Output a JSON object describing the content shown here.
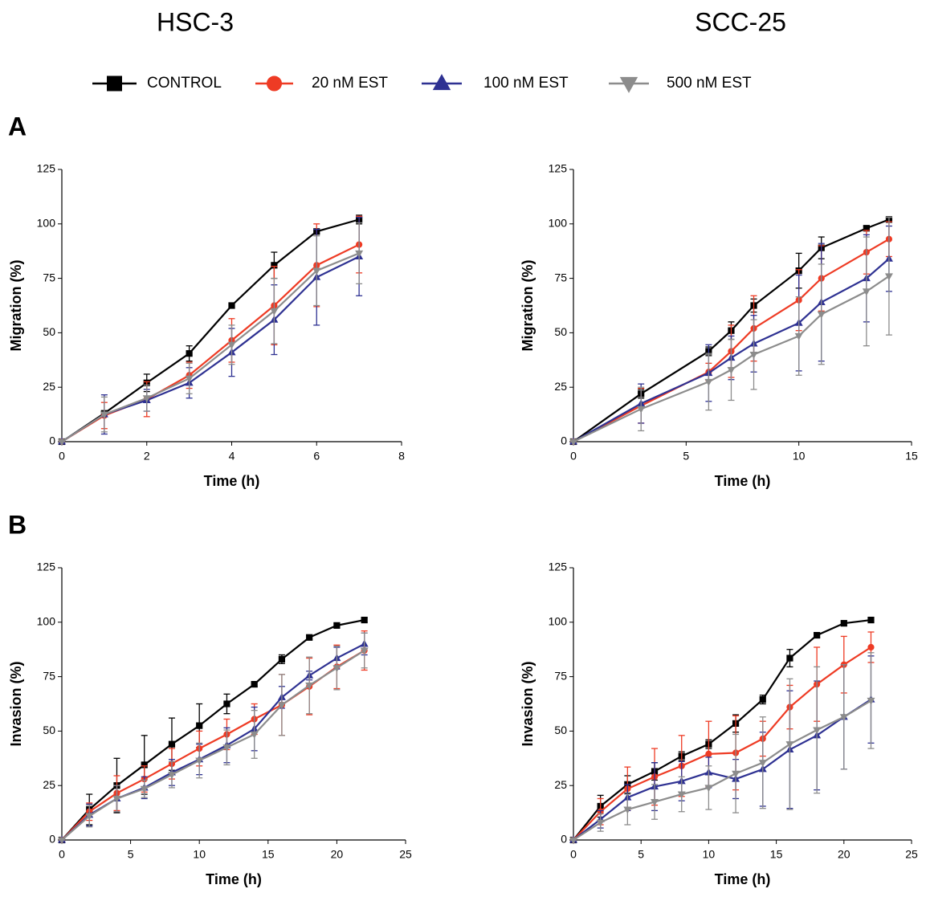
{
  "columns": [
    "HSC-3",
    "SCC-25"
  ],
  "rows": [
    "A",
    "B"
  ],
  "series": [
    {
      "name": "CONTROL",
      "color": "#000000",
      "marker": "square"
    },
    {
      "name": "20 nM EST",
      "color": "#ee3b24",
      "marker": "circle"
    },
    {
      "name": "100 nM EST",
      "color": "#2e3192",
      "marker": "triangle-up"
    },
    {
      "name": "500 nM EST",
      "color": "#8c8c8c",
      "marker": "triangle-down"
    }
  ],
  "chart_data": [
    {
      "type": "line",
      "x_label": "Time (h)",
      "y_label": "Migration (%)",
      "x": [
        0,
        1,
        2,
        3,
        4,
        5,
        6,
        7
      ],
      "xlim": [
        0,
        8
      ],
      "xticks": [
        0,
        2,
        4,
        6,
        8
      ],
      "ylim": [
        0,
        125
      ],
      "yticks": [
        0,
        25,
        50,
        75,
        100,
        125
      ],
      "series": [
        {
          "values": [
            0,
            13,
            27,
            40.5,
            62.5,
            81,
            96.5,
            102
          ],
          "errors": [
            0,
            1,
            4,
            3.5,
            1,
            6,
            1,
            2
          ]
        },
        {
          "values": [
            0,
            12,
            19.5,
            30.5,
            46.5,
            62.5,
            81,
            90.5
          ],
          "errors": [
            0,
            6,
            8,
            6,
            10,
            18,
            19,
            13
          ]
        },
        {
          "values": [
            0,
            12.5,
            19,
            27,
            41,
            56,
            75.5,
            85
          ],
          "errors": [
            0,
            9,
            5,
            7,
            11,
            16,
            22,
            18
          ]
        },
        {
          "values": [
            0,
            12.5,
            20,
            29,
            44.5,
            60,
            78.5,
            86.5
          ],
          "errors": [
            0,
            8,
            6,
            7,
            9,
            15,
            16,
            14
          ]
        }
      ]
    },
    {
      "type": "line",
      "x_label": "Time (h)",
      "y_label": "Migration (%)",
      "x": [
        0,
        3,
        6,
        7,
        8,
        10,
        11,
        13,
        14
      ],
      "xlim": [
        0,
        15
      ],
      "xticks": [
        0,
        5,
        10,
        15
      ],
      "ylim": [
        0,
        125
      ],
      "yticks": [
        0,
        25,
        50,
        75,
        100,
        125
      ],
      "series": [
        {
          "values": [
            0,
            22,
            41.5,
            51,
            62.5,
            78.5,
            89,
            98,
            102
          ],
          "errors": [
            0,
            2,
            2,
            4,
            3,
            8,
            5,
            1,
            1
          ]
        },
        {
          "values": [
            0,
            16.5,
            32,
            41.5,
            52,
            65,
            75,
            87,
            93
          ],
          "errors": [
            0,
            8,
            4,
            12,
            15,
            14,
            15,
            10,
            8
          ]
        },
        {
          "values": [
            0,
            17.5,
            31.5,
            38.5,
            45,
            54.5,
            64,
            75,
            84
          ],
          "errors": [
            0,
            9,
            13,
            10,
            13,
            22,
            27,
            20,
            15
          ]
        },
        {
          "values": [
            0,
            15,
            27.5,
            33,
            40,
            48.5,
            58.5,
            69,
            76
          ],
          "errors": [
            0,
            10,
            13,
            14,
            16,
            18,
            23,
            25,
            27
          ]
        }
      ]
    },
    {
      "type": "line",
      "x_label": "Time (h)",
      "y_label": "Invasion (%)",
      "x": [
        0,
        2,
        4,
        6,
        8,
        10,
        12,
        14,
        16,
        18,
        20,
        22
      ],
      "xlim": [
        0,
        25
      ],
      "xticks": [
        0,
        5,
        10,
        15,
        20,
        25
      ],
      "ylim": [
        0,
        125
      ],
      "yticks": [
        0,
        25,
        50,
        75,
        100,
        125
      ],
      "series": [
        {
          "values": [
            0,
            14,
            25,
            34.5,
            44,
            52.5,
            62.5,
            71.5,
            83,
            93,
            98.5,
            101
          ],
          "errors": [
            0,
            7,
            12.5,
            13.5,
            12,
            10,
            4.5,
            1,
            2,
            1,
            1,
            1
          ]
        },
        {
          "values": [
            0,
            13,
            21.5,
            28,
            35,
            42,
            48.5,
            55.5,
            62,
            70.5,
            79.5,
            87
          ],
          "errors": [
            0,
            4,
            8,
            6,
            7,
            8,
            7,
            7,
            14,
            13,
            10,
            9
          ]
        },
        {
          "values": [
            0,
            11.5,
            19,
            24,
            31,
            37,
            43.5,
            51,
            65.5,
            75.5,
            83.5,
            90
          ],
          "errors": [
            0,
            5,
            6,
            5,
            6,
            7,
            8,
            10,
            5,
            2,
            5,
            5
          ]
        },
        {
          "values": [
            0,
            11,
            19,
            23.5,
            30,
            36.5,
            42.5,
            48.5,
            62,
            71,
            79,
            87
          ],
          "errors": [
            0,
            5,
            6,
            4,
            6,
            8,
            8,
            11,
            14,
            13,
            10,
            8
          ]
        }
      ]
    },
    {
      "type": "line",
      "x_label": "Time (h)",
      "y_label": "Invasion (%)",
      "x": [
        0,
        2,
        4,
        6,
        8,
        10,
        12,
        14,
        16,
        18,
        20,
        22
      ],
      "xlim": [
        0,
        25
      ],
      "xticks": [
        0,
        5,
        10,
        15,
        20,
        25
      ],
      "ylim": [
        0,
        125
      ],
      "yticks": [
        0,
        25,
        50,
        75,
        100,
        125
      ],
      "series": [
        {
          "values": [
            0,
            15.5,
            25.5,
            31.5,
            38.5,
            44,
            53.5,
            64.5,
            83.5,
            94,
            99.5,
            101
          ],
          "errors": [
            0,
            5,
            4,
            4,
            2,
            2,
            4,
            2,
            4,
            1,
            1,
            1
          ]
        },
        {
          "values": [
            0,
            13,
            23.5,
            29,
            34,
            39.5,
            40,
            46.5,
            61,
            71.5,
            80.5,
            88.5
          ],
          "errors": [
            0,
            6,
            10,
            13,
            14,
            15,
            17,
            8,
            10,
            17,
            13,
            7
          ]
        },
        {
          "values": [
            0,
            9.5,
            19.5,
            24.5,
            27,
            31,
            28,
            32.5,
            41.5,
            48,
            56.5,
            64.5
          ],
          "errors": [
            0,
            4,
            6,
            11,
            9,
            7,
            9,
            17,
            27,
            25,
            24,
            20
          ]
        },
        {
          "values": [
            0,
            8,
            14,
            17.5,
            21,
            24,
            30.5,
            35.5,
            44,
            50.5,
            56.5,
            64
          ],
          "errors": [
            0,
            4,
            7,
            8,
            8,
            10,
            18,
            21,
            30,
            29,
            24,
            22
          ]
        }
      ]
    }
  ]
}
